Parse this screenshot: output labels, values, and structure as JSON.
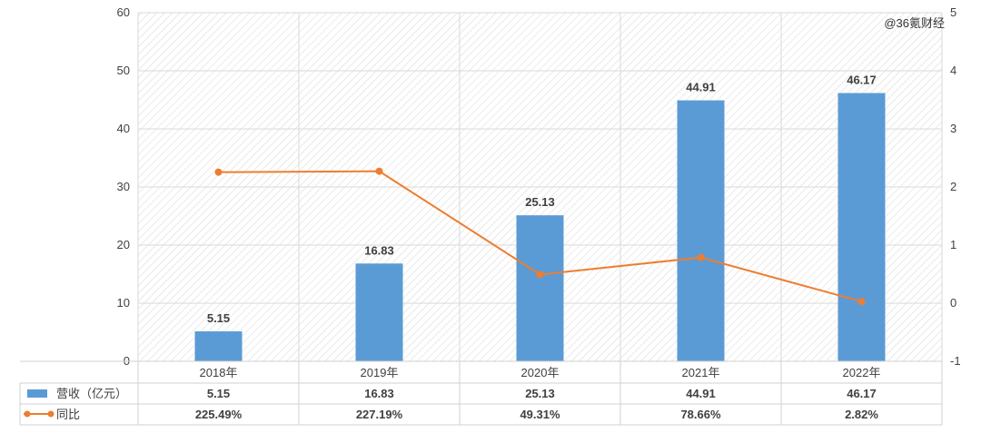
{
  "watermark": "@36氪财经",
  "chart_data": {
    "type": "bar",
    "categories": [
      "2018年",
      "2019年",
      "2020年",
      "2021年",
      "2022年"
    ],
    "series": [
      {
        "name": "营收（亿元）",
        "type": "bar",
        "axis": "left",
        "color": "#5b9bd5",
        "values": [
          5.15,
          16.83,
          25.13,
          44.91,
          46.17
        ],
        "labels": [
          "5.15",
          "16.83",
          "25.13",
          "44.91",
          "46.17"
        ]
      },
      {
        "name": "同比",
        "type": "line",
        "axis": "right",
        "color": "#ed7d31",
        "values": [
          2.2549,
          2.2719,
          0.4931,
          0.7866,
          0.0282
        ],
        "labels": [
          "225.49%",
          "227.19%",
          "49.31%",
          "78.66%",
          "2.82%"
        ]
      }
    ],
    "left_axis": {
      "ylim": [
        0,
        60
      ],
      "ticks": [
        "0",
        "10",
        "20",
        "30",
        "40",
        "50",
        "60"
      ]
    },
    "right_axis": {
      "ylim": [
        -1,
        5
      ],
      "ticks": [
        "-1",
        "0",
        "1",
        "2",
        "3",
        "4",
        "5"
      ]
    },
    "grid": true,
    "legend": "data table below chart"
  }
}
